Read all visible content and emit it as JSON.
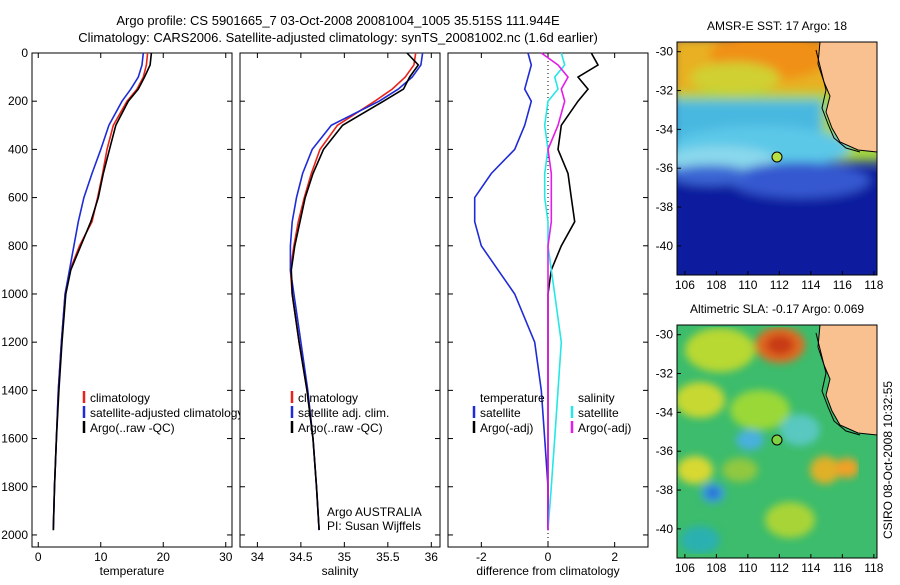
{
  "header": {
    "line1": "Argo profile: CS 5901665_7 03-Oct-2008 20081004_1005 35.515S 111.944E",
    "line2": "Climatology: CARS2006. Satellite-adjusted climatology: synTS_20081002.nc (1.6d earlier)"
  },
  "footer_vertical": "CSIRO 08-Oct-2008 10:32:55",
  "colors": {
    "climatology": "#e8231c",
    "satellite": "#1f2bd6",
    "argo": "#000000",
    "argo_salinity_diff": "#e31ce8",
    "satellite_salinity_diff": "#26e6e6"
  },
  "chart_data": [
    {
      "type": "line",
      "panel": "temperature",
      "xlabel": "temperature",
      "xlim": [
        -1,
        31
      ],
      "xticks": [
        "0",
        "10",
        "20",
        "30"
      ],
      "ylim": [
        0,
        2050
      ],
      "yticks": [
        "0",
        "200",
        "400",
        "600",
        "800",
        "1000",
        "1200",
        "1400",
        "1600",
        "1800",
        "2000"
      ],
      "y_reversed": true,
      "legend": {
        "placement": "lower-center",
        "items": [
          {
            "label": "climatology",
            "color_key": "climatology"
          },
          {
            "label": "satellite-adjusted climatology",
            "color_key": "satellite"
          },
          {
            "label": "Argo(..raw -QC)",
            "color_key": "argo"
          }
        ]
      },
      "series": [
        {
          "name": "climatology",
          "color_key": "climatology",
          "x": [
            17.5,
            17.3,
            16.8,
            15.8,
            14.2,
            12.0,
            11.0,
            10.3,
            9.5,
            8.6,
            6.6,
            5.1,
            4.3,
            3.7,
            3.2,
            2.9,
            2.6,
            2.4
          ],
          "y": [
            0,
            50,
            100,
            150,
            200,
            300,
            400,
            500,
            600,
            700,
            800,
            900,
            1000,
            1200,
            1400,
            1600,
            1800,
            1980
          ]
        },
        {
          "name": "satellite-adjusted climatology",
          "color_key": "satellite",
          "x": [
            16.8,
            16.6,
            16.0,
            14.8,
            13.4,
            11.3,
            10.0,
            8.6,
            7.3,
            6.4,
            5.7,
            5.0,
            4.3,
            3.7,
            3.2,
            2.9,
            2.6,
            2.4
          ],
          "y": [
            0,
            50,
            100,
            150,
            200,
            300,
            400,
            500,
            600,
            700,
            800,
            900,
            1000,
            1200,
            1400,
            1600,
            1800,
            1980
          ]
        },
        {
          "name": "Argo(..raw -QC)",
          "color_key": "argo",
          "x": [
            18.1,
            17.9,
            17.0,
            16.0,
            14.4,
            12.4,
            11.4,
            10.4,
            9.6,
            8.4,
            6.8,
            5.2,
            4.4,
            3.8,
            3.3,
            2.9,
            2.6,
            2.4
          ],
          "y": [
            0,
            50,
            100,
            150,
            200,
            300,
            400,
            500,
            600,
            700,
            800,
            900,
            1000,
            1200,
            1400,
            1600,
            1800,
            1980
          ]
        }
      ]
    },
    {
      "type": "line",
      "panel": "salinity",
      "xlabel": "salinity",
      "xlim": [
        33.8,
        36.1
      ],
      "xticks": [
        "34",
        "34.5",
        "35",
        "35.5",
        "36"
      ],
      "ylim": [
        0,
        2050
      ],
      "y_reversed": true,
      "legend": {
        "placement": "lower-center",
        "items": [
          {
            "label": "climatology",
            "color_key": "climatology"
          },
          {
            "label": "satellite adj. clim.",
            "color_key": "satellite"
          },
          {
            "label": "Argo(..raw -QC)",
            "color_key": "argo"
          }
        ]
      },
      "annotation": [
        "Argo AUSTRALIA",
        "PI: Susan Wijffels"
      ],
      "series": [
        {
          "name": "climatology",
          "color_key": "climatology",
          "x": [
            35.82,
            35.8,
            35.7,
            35.55,
            35.35,
            34.92,
            34.72,
            34.62,
            34.54,
            34.47,
            34.42,
            34.38,
            34.4,
            34.48,
            34.57,
            34.64,
            34.68,
            34.71
          ],
          "y": [
            0,
            50,
            100,
            150,
            200,
            300,
            400,
            500,
            600,
            700,
            800,
            900,
            1000,
            1200,
            1400,
            1600,
            1800,
            1980
          ]
        },
        {
          "name": "satellite adj. clim.",
          "color_key": "satellite",
          "x": [
            35.9,
            35.88,
            35.78,
            35.62,
            35.4,
            34.85,
            34.63,
            34.52,
            34.45,
            34.4,
            34.38,
            34.38,
            34.42,
            34.5,
            34.58,
            34.64,
            34.68,
            34.71
          ],
          "y": [
            0,
            50,
            100,
            150,
            200,
            300,
            400,
            500,
            600,
            700,
            800,
            900,
            1000,
            1200,
            1400,
            1600,
            1800,
            1980
          ]
        },
        {
          "name": "Argo(..raw -QC)",
          "color_key": "argo",
          "x": [
            35.72,
            35.85,
            35.75,
            35.68,
            35.45,
            34.98,
            34.76,
            34.64,
            34.55,
            34.49,
            34.43,
            34.39,
            34.4,
            34.48,
            34.57,
            34.64,
            34.68,
            34.71
          ],
          "y": [
            0,
            50,
            100,
            150,
            200,
            300,
            400,
            500,
            600,
            700,
            800,
            900,
            1000,
            1200,
            1400,
            1600,
            1800,
            1980
          ]
        }
      ]
    },
    {
      "type": "line",
      "panel": "difference",
      "xlabel": "difference from climatology",
      "xlim": [
        -3,
        3
      ],
      "xticks": [
        "-2",
        "0",
        "2"
      ],
      "ylim": [
        0,
        2050
      ],
      "y_reversed": true,
      "legend": {
        "placement": "lower-center",
        "items": [
          {
            "label": "temperature",
            "color_key": "",
            "heading": true
          },
          {
            "label": "salinity",
            "color_key": "",
            "heading": true
          },
          {
            "label": "satellite",
            "color_key": "satellite"
          },
          {
            "label": "satellite",
            "color_key": "satellite_salinity_diff"
          },
          {
            "label": "Argo(-adj)",
            "color_key": "argo"
          },
          {
            "label": "Argo(-adj)",
            "color_key": "argo_salinity_diff"
          }
        ]
      },
      "series": [
        {
          "name": "temperature satellite",
          "color_key": "satellite",
          "x": [
            -0.6,
            -0.5,
            -0.6,
            -0.7,
            -0.5,
            -0.7,
            -1.0,
            -1.7,
            -2.2,
            -2.2,
            -2.0,
            -1.5,
            -1.0,
            -0.4,
            -0.2,
            -0.1,
            0.0,
            0.0
          ],
          "y": [
            0,
            50,
            100,
            150,
            200,
            300,
            400,
            500,
            600,
            700,
            800,
            900,
            1000,
            1200,
            1400,
            1600,
            1800,
            1980
          ]
        },
        {
          "name": "temperature Argo(-adj)",
          "color_key": "argo",
          "x": [
            1.3,
            1.5,
            0.9,
            1.2,
            0.9,
            0.4,
            0.3,
            0.6,
            0.7,
            0.8,
            0.4,
            0.1,
            0.0,
            0.0,
            0.0,
            0.0,
            0.0,
            0.0
          ],
          "y": [
            0,
            50,
            100,
            150,
            200,
            300,
            400,
            500,
            600,
            700,
            800,
            900,
            1000,
            1200,
            1400,
            1600,
            1800,
            1980
          ]
        },
        {
          "name": "salinity satellite",
          "color_key": "satellite_salinity_diff",
          "x": [
            0.4,
            0.5,
            0.2,
            0.3,
            0.0,
            -0.1,
            0.0,
            -0.1,
            -0.1,
            0.0,
            0.0,
            0.1,
            0.2,
            0.4,
            0.3,
            0.2,
            0.1,
            0.0
          ],
          "y": [
            0,
            50,
            100,
            150,
            200,
            300,
            400,
            500,
            600,
            700,
            800,
            900,
            1000,
            1200,
            1400,
            1600,
            1800,
            1980
          ]
        },
        {
          "name": "salinity Argo(-adj)",
          "color_key": "argo_salinity_diff",
          "x": [
            -0.2,
            0.3,
            0.6,
            0.4,
            0.5,
            0.3,
            0.0,
            0.1,
            0.1,
            0.1,
            0.0,
            0.0,
            0.0,
            0.0,
            0.0,
            0.0,
            0.0,
            0.0
          ],
          "y": [
            0,
            50,
            100,
            150,
            200,
            300,
            400,
            500,
            600,
            700,
            800,
            900,
            1000,
            1200,
            1400,
            1600,
            1800,
            1980
          ]
        }
      ]
    },
    {
      "type": "heatmap",
      "panel": "sst-map",
      "title": "AMSR-E SST: 17 Argo: 18",
      "xlim": [
        105.5,
        118.2
      ],
      "ylim": [
        -41.5,
        -29.5
      ],
      "xticks": [
        "106",
        "108",
        "110",
        "112",
        "114",
        "116",
        "118"
      ],
      "yticks": [
        "-30",
        "-32",
        "-34",
        "-36",
        "-38",
        "-40"
      ],
      "float_position": {
        "lon": 111.944,
        "lat": -35.515
      }
    },
    {
      "type": "heatmap",
      "panel": "sla-map",
      "title": "Altimetric SLA: -0.17 Argo: 0.069",
      "xlim": [
        105.5,
        118.2
      ],
      "ylim": [
        -41.5,
        -29.5
      ],
      "xticks": [
        "106",
        "108",
        "110",
        "112",
        "114",
        "116",
        "118"
      ],
      "yticks": [
        "-30",
        "-32",
        "-34",
        "-36",
        "-38",
        "-40"
      ],
      "float_position": {
        "lon": 111.944,
        "lat": -35.515
      }
    }
  ]
}
